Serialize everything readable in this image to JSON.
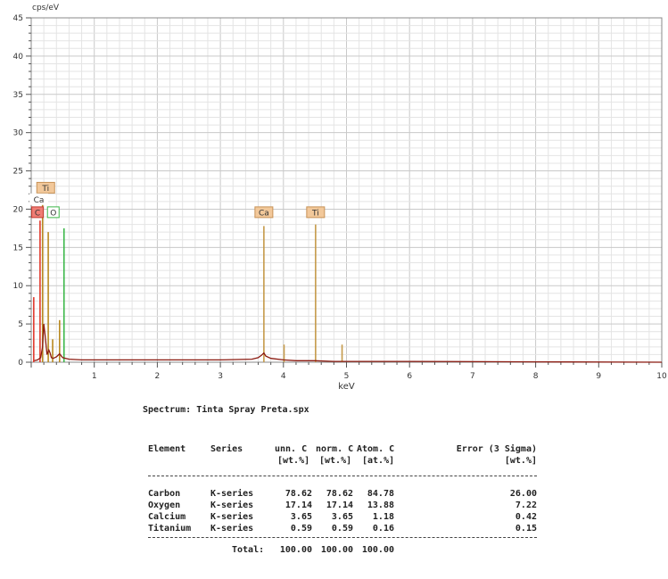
{
  "chart_data": {
    "type": "line",
    "ylabel": "cps/eV",
    "xlabel": "keV",
    "xlim": [
      0,
      10
    ],
    "ylim": [
      0,
      45
    ],
    "x_ticks": [
      "1",
      "2",
      "3",
      "4",
      "5",
      "6",
      "7",
      "8",
      "9",
      "10"
    ],
    "y_ticks": [
      "5",
      "10",
      "15",
      "20",
      "25",
      "30",
      "35",
      "40",
      "45"
    ],
    "grid": true,
    "series": [
      {
        "x": [
          0.05,
          0.1,
          0.15,
          0.18,
          0.2,
          0.22,
          0.25,
          0.28,
          0.3,
          0.32,
          0.35,
          0.4,
          0.45,
          0.5,
          0.6,
          0.8,
          1.5,
          2.5,
          3.0,
          3.5,
          3.6,
          3.65,
          3.69,
          3.72,
          3.8,
          4.0,
          4.2,
          4.5,
          4.8,
          5.0,
          6.0,
          8.0,
          10.0
        ],
        "y": [
          0.2,
          0.3,
          0.6,
          2.0,
          5.0,
          3.5,
          1.0,
          1.6,
          1.2,
          0.6,
          0.5,
          0.7,
          1.1,
          0.6,
          0.4,
          0.3,
          0.3,
          0.3,
          0.3,
          0.4,
          0.6,
          0.9,
          1.2,
          0.8,
          0.5,
          0.3,
          0.2,
          0.2,
          0.1,
          0.1,
          0.1,
          0.05,
          0
        ]
      }
    ],
    "peak_lines": [
      {
        "x": 0.04,
        "y": 8.5,
        "color": "#e03a2e"
      },
      {
        "x": 0.14,
        "y": 18.5,
        "color": "#e03a2e"
      },
      {
        "x": 0.18,
        "y": 21.0,
        "color": "#b8891f"
      },
      {
        "x": 0.27,
        "y": 17.0,
        "color": "#b8891f"
      },
      {
        "x": 0.34,
        "y": 3.0,
        "color": "#b8891f"
      },
      {
        "x": 0.52,
        "y": 17.5,
        "color": "#3db84a"
      },
      {
        "x": 0.45,
        "y": 5.5,
        "color": "#b8891f"
      },
      {
        "x": 3.69,
        "y": 17.8,
        "color": "#c59a4a"
      },
      {
        "x": 4.01,
        "y": 2.3,
        "color": "#c59a4a"
      },
      {
        "x": 4.51,
        "y": 18.0,
        "color": "#c59a4a"
      },
      {
        "x": 4.93,
        "y": 2.3,
        "color": "#c59a4a"
      }
    ],
    "element_markers": [
      {
        "label": "Ti",
        "x": 0.23,
        "y": 22.8,
        "fill": "#f2c89a",
        "stroke": "#c79257"
      },
      {
        "label": "Ca",
        "x": 0.12,
        "y": 21.3,
        "fill": "#ffffff",
        "stroke": "#ffffff"
      },
      {
        "label": "C",
        "x": 0.1,
        "y": 19.6,
        "fill": "#ef7d75",
        "stroke": "#c23a30"
      },
      {
        "label": "O",
        "x": 0.35,
        "y": 19.6,
        "fill": "#ffffff",
        "stroke": "#3db84a"
      },
      {
        "label": "Ca",
        "x": 3.69,
        "y": 19.6,
        "fill": "#f2c89a",
        "stroke": "#c79257"
      },
      {
        "label": "Ti",
        "x": 4.51,
        "y": 19.6,
        "fill": "#f2c89a",
        "stroke": "#c79257"
      }
    ]
  },
  "report": {
    "spectrum_line": "Spectrum: Tinta Spray Preta.spx",
    "headers_1": [
      "Element",
      "Series",
      "unn. C",
      "norm. C",
      "Atom. C",
      "Error (3 Sigma)"
    ],
    "headers_2": [
      "",
      "",
      "[wt.%]",
      "[wt.%]",
      "[at.%]",
      "[wt.%]"
    ],
    "rows": [
      {
        "element": "Carbon",
        "series": "K-series",
        "unn": "78.62",
        "norm": "78.62",
        "atom": "84.78",
        "error": "26.00"
      },
      {
        "element": "Oxygen",
        "series": "K-series",
        "unn": "17.14",
        "norm": "17.14",
        "atom": "13.88",
        "error": "7.22"
      },
      {
        "element": "Calcium",
        "series": "K-series",
        "unn": "3.65",
        "norm": "3.65",
        "atom": "1.18",
        "error": "0.42"
      },
      {
        "element": "Titanium",
        "series": "K-series",
        "unn": "0.59",
        "norm": "0.59",
        "atom": "0.16",
        "error": "0.15"
      }
    ],
    "total_label": "Total:",
    "total_unn": "100.00",
    "total_norm": "100.00",
    "total_atom": "100.00"
  }
}
